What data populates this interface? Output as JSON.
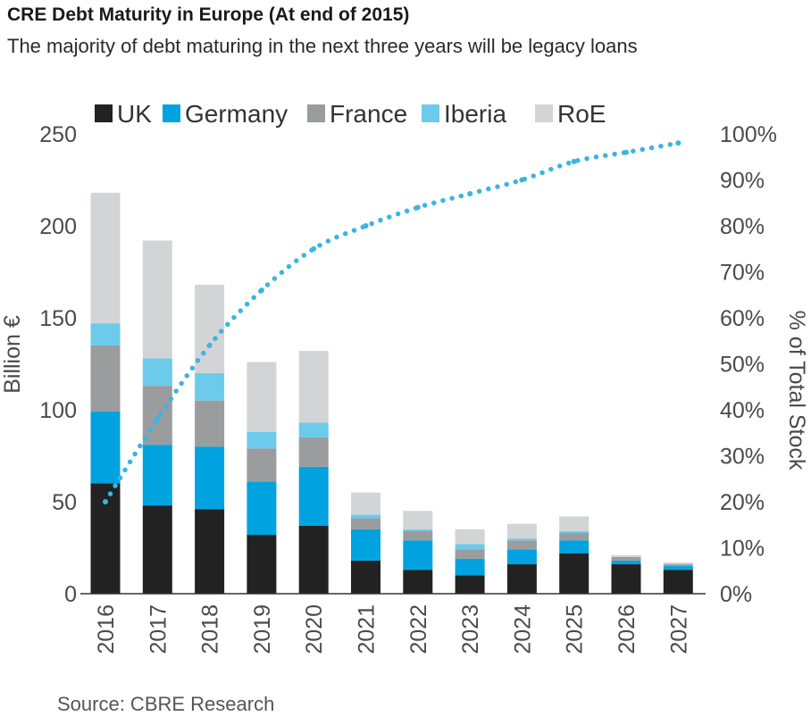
{
  "header": {
    "title": "CRE Debt Maturity in Europe (At end of 2015)",
    "subtitle": "The majority of debt maturing in the next three years will be legacy loans"
  },
  "footer": {
    "source": "Source: CBRE Research"
  },
  "chart_data": {
    "type": "bar",
    "stacked": true,
    "categories": [
      "2016",
      "2017",
      "2018",
      "2019",
      "2020",
      "2021",
      "2022",
      "2023",
      "2024",
      "2025",
      "2026",
      "2027"
    ],
    "series": [
      {
        "name": "UK",
        "color": "#222222",
        "values": [
          60,
          48,
          46,
          32,
          37,
          18,
          13,
          10,
          16,
          22,
          16,
          13
        ]
      },
      {
        "name": "Germany",
        "color": "#00a3df",
        "values": [
          39,
          33,
          34,
          29,
          32,
          17,
          16,
          9,
          8,
          7,
          2,
          2
        ]
      },
      {
        "name": "France",
        "color": "#9b9c9e",
        "values": [
          36,
          32,
          25,
          18,
          16,
          6,
          5,
          5,
          5,
          4,
          2,
          1
        ]
      },
      {
        "name": "Iberia",
        "color": "#6ccbeb",
        "values": [
          12,
          15,
          15,
          9,
          8,
          2,
          1,
          3,
          1,
          1,
          0,
          0
        ]
      },
      {
        "name": "RoE",
        "color": "#d3d4d6",
        "values": [
          71,
          64,
          48,
          38,
          39,
          12,
          10,
          8,
          8,
          8,
          1,
          1
        ]
      }
    ],
    "line_series": {
      "name": "% of Total Stock",
      "axis": "right",
      "color": "#3bb5e0",
      "style": "dotted",
      "values": [
        20,
        38,
        54,
        66,
        75,
        80,
        84,
        87,
        90,
        94,
        96,
        98
      ]
    },
    "ylabel": "Billion €",
    "y2label": "% of Total Stock",
    "ylim": [
      0,
      250
    ],
    "yticks": [
      "0",
      "50",
      "100",
      "150",
      "200",
      "250"
    ],
    "y2lim": [
      0,
      100
    ],
    "y2ticks": [
      "0%",
      "10%",
      "20%",
      "30%",
      "40%",
      "50%",
      "60%",
      "70%",
      "80%",
      "90%",
      "100%"
    ],
    "legend": [
      "UK",
      "Germany",
      "France",
      "Iberia",
      "RoE"
    ],
    "legend_position": "top",
    "grid": false
  }
}
